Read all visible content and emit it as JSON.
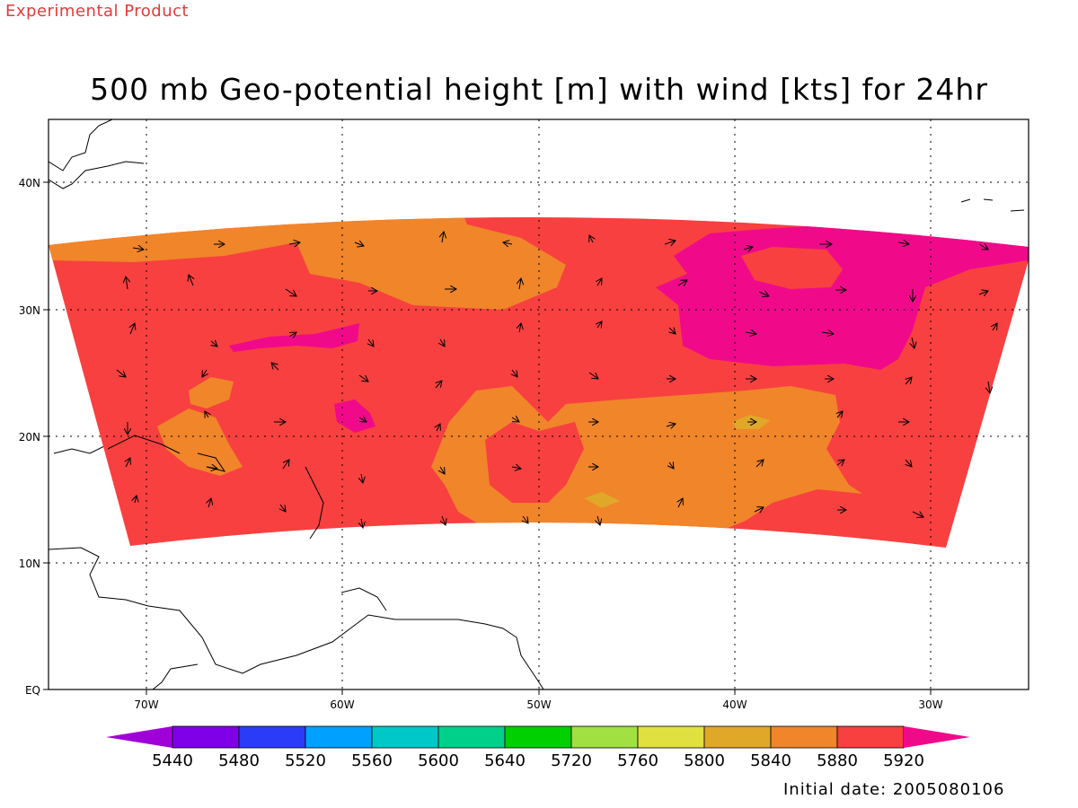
{
  "header": {
    "product_label": "Experimental Product",
    "title": "500 mb Geo-potential height [m] with wind [kts] for 24hr"
  },
  "footer": {
    "initial_date": "Initial date: 2005080106"
  },
  "map": {
    "lon_labels": [
      "70W",
      "60W",
      "50W",
      "40W",
      "30W"
    ],
    "lat_labels": [
      "40N",
      "30N",
      "20N",
      "10N",
      "EQ"
    ],
    "grid": "dotted",
    "colors": {
      "c5880": "#f0852a",
      "c5920": "#f84040",
      "c5960": "#f00a8a",
      "c5800": "#e0a828",
      "land_outline": "#000000"
    }
  },
  "colorbar": {
    "labels": [
      "5440",
      "5480",
      "5520",
      "5560",
      "5600",
      "5640",
      "5720",
      "5760",
      "5800",
      "5840",
      "5880",
      "5920"
    ],
    "colors": [
      "#a000d8",
      "#7f00e8",
      "#2a3cf8",
      "#00a0ff",
      "#00c8c8",
      "#00d08a",
      "#00d000",
      "#a0e040",
      "#e0e040",
      "#e0a828",
      "#f0852a",
      "#f84040",
      "#f00a8a"
    ]
  }
}
